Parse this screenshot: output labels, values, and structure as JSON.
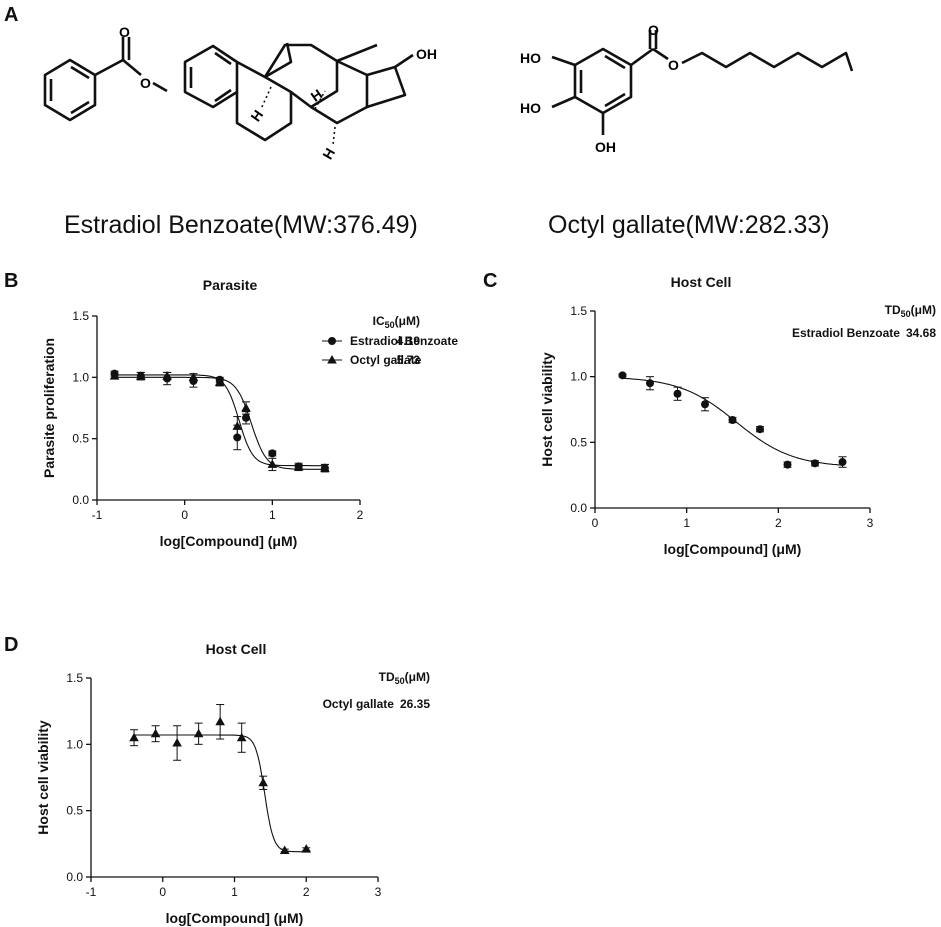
{
  "panel_labels": {
    "a": "A",
    "b": "B",
    "c": "C",
    "d": "D"
  },
  "structures": {
    "left_caption": "Estradiol Benzoate(MW:376.49)",
    "right_caption": "Octyl gallate(MW:282.33)",
    "atom_labels": {
      "oh": "OH",
      "ho": "HO",
      "h": "H"
    }
  },
  "chart_data": [
    {
      "id": "B",
      "type": "scatter",
      "title": "Parasite",
      "xlabel": "log[Compound] (μM)",
      "ylabel": "Parasite proliferation",
      "xlim": [
        -1,
        2
      ],
      "ylim": [
        0,
        1.5
      ],
      "xticks": [
        -1,
        0,
        1,
        2
      ],
      "yticks": [
        0.0,
        0.5,
        1.0,
        1.5
      ],
      "legend_header": "IC50(μM)",
      "legend_position": "top-right",
      "series": [
        {
          "name": "Estradiol Benzoate",
          "marker": "circle",
          "legend_value": "4.19",
          "x": [
            -0.8,
            -0.5,
            -0.2,
            0.1,
            0.4,
            0.6,
            0.7,
            1.0,
            1.3,
            1.6
          ],
          "y": [
            1.03,
            1.01,
            0.99,
            0.97,
            0.98,
            0.51,
            0.67,
            0.38,
            0.27,
            0.26
          ],
          "err": [
            0.02,
            0.03,
            0.05,
            0.05,
            0.02,
            0.1,
            0.05,
            0.02,
            0.02,
            0.03
          ],
          "fit": {
            "top": 1.02,
            "bottom": 0.28,
            "logec50": 0.62,
            "hill": 5.5
          }
        },
        {
          "name": "Octyl gallate",
          "marker": "triangle",
          "legend_value": "5.73",
          "x": [
            -0.8,
            -0.5,
            -0.2,
            0.1,
            0.4,
            0.6,
            0.7,
            1.0,
            1.3,
            1.6
          ],
          "y": [
            1.01,
            1.01,
            1.01,
            1.0,
            0.96,
            0.6,
            0.75,
            0.29,
            0.27,
            0.26
          ],
          "err": [
            0.02,
            0.03,
            0.03,
            0.03,
            0.03,
            0.08,
            0.05,
            0.05,
            0.03,
            0.03
          ],
          "fit": {
            "top": 1.0,
            "bottom": 0.25,
            "logec50": 0.76,
            "hill": 5.0
          }
        }
      ]
    },
    {
      "id": "C",
      "type": "scatter",
      "title": "Host Cell",
      "xlabel": "log[Compound] (μM)",
      "ylabel": "Host cell viability",
      "xlim": [
        0,
        3
      ],
      "ylim": [
        0,
        1.5
      ],
      "xticks": [
        0,
        1,
        2,
        3
      ],
      "yticks": [
        0.0,
        0.5,
        1.0,
        1.5
      ],
      "legend_header": "TD50(μM)",
      "legend_position": "top-right",
      "series": [
        {
          "name": "Estradiol Benzoate",
          "marker": "circle",
          "legend_value": "34.68",
          "x": [
            0.3,
            0.6,
            0.9,
            1.2,
            1.5,
            1.8,
            2.1,
            2.4,
            2.7
          ],
          "y": [
            1.01,
            0.95,
            0.87,
            0.79,
            0.67,
            0.6,
            0.33,
            0.34,
            0.35
          ],
          "err": [
            0.01,
            0.05,
            0.05,
            0.05,
            0.02,
            0.02,
            0.02,
            0.02,
            0.04
          ],
          "fit": {
            "top": 1.0,
            "bottom": 0.31,
            "logec50": 1.54,
            "hill": 1.4
          }
        }
      ]
    },
    {
      "id": "D",
      "type": "scatter",
      "title": "Host Cell",
      "xlabel": "log[Compound] (μM)",
      "ylabel": "Host cell viability",
      "xlim": [
        -1,
        3
      ],
      "ylim": [
        0,
        1.5
      ],
      "xticks": [
        -1,
        0,
        1,
        2,
        3
      ],
      "yticks": [
        0.0,
        0.5,
        1.0,
        1.5
      ],
      "legend_header": "TD50(μM)",
      "legend_position": "top-right",
      "series": [
        {
          "name": "Octyl gallate",
          "marker": "triangle",
          "legend_value": "26.35",
          "x": [
            -0.4,
            -0.1,
            0.2,
            0.5,
            0.8,
            1.1,
            1.4,
            1.7,
            2.0
          ],
          "y": [
            1.05,
            1.08,
            1.01,
            1.08,
            1.17,
            1.05,
            0.71,
            0.2,
            0.21
          ],
          "err": [
            0.06,
            0.06,
            0.13,
            0.08,
            0.13,
            0.11,
            0.05,
            0.01,
            0.01
          ],
          "fit": {
            "top": 1.07,
            "bottom": 0.19,
            "logec50": 1.42,
            "hill": 7.0
          }
        }
      ]
    }
  ]
}
